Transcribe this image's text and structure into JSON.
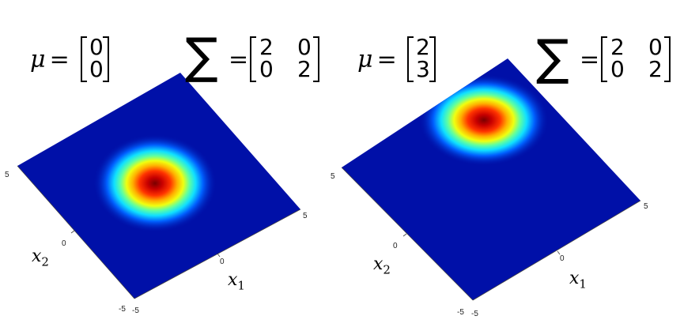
{
  "panels": [
    {
      "mu_symbol": "μ",
      "equals": "=",
      "mu": [
        "0",
        "0"
      ],
      "sigma_symbol": "∑",
      "sigma_equals": "=",
      "sigma": [
        [
          "2",
          "0"
        ],
        [
          "0",
          "2"
        ]
      ],
      "x1_label": "x",
      "x1_sub": "1",
      "x2_label": "x",
      "x2_sub": "2",
      "ticks": {
        "x1_left": "-5",
        "x1_mid": "0",
        "x1_right": "5",
        "x2_top": "5",
        "x2_mid": "0",
        "x2_bottom": "-5"
      }
    },
    {
      "mu_symbol": "μ",
      "equals": "=",
      "mu": [
        "2",
        "3"
      ],
      "sigma_symbol": "∑",
      "sigma_equals": "=",
      "sigma": [
        [
          "2",
          "0"
        ],
        [
          "0",
          "2"
        ]
      ],
      "x1_label": "x",
      "x1_sub": "1",
      "x2_label": "x",
      "x2_sub": "2",
      "ticks": {
        "x1_left": "-5",
        "x1_mid": "0",
        "x1_right": "5",
        "x2_top": "5",
        "x2_mid": "0",
        "x2_bottom": "-5"
      }
    }
  ],
  "colors": {
    "low": "#0010a8",
    "peak": "#8a0000",
    "colormap": "jet"
  }
}
